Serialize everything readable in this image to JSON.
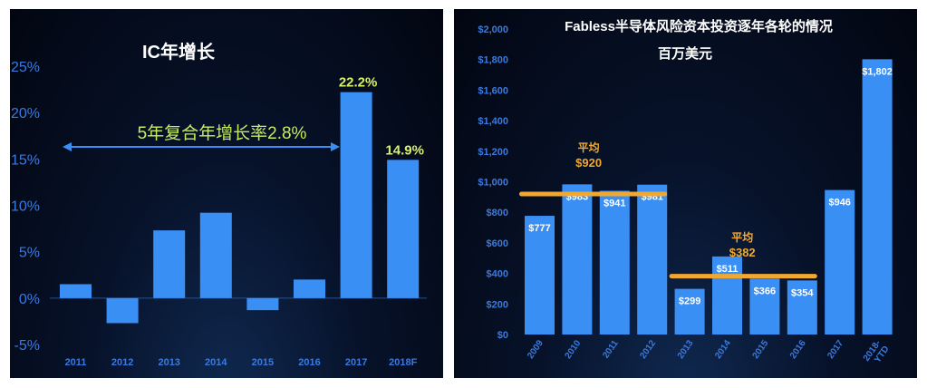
{
  "chart_data": [
    {
      "type": "bar",
      "title": "IC年增长",
      "categories": [
        "2011",
        "2012",
        "2013",
        "2014",
        "2015",
        "2016",
        "2017",
        "2018F"
      ],
      "values": [
        1.5,
        -2.7,
        7.3,
        9.2,
        -1.3,
        2.0,
        22.2,
        14.9
      ],
      "data_labels": [
        "",
        "",
        "",
        "",
        "",
        "",
        "22.2%",
        "14.9%"
      ],
      "ylim": [
        -5,
        25
      ],
      "yticks": [
        25,
        20,
        15,
        10,
        5,
        0,
        -5
      ],
      "ytick_labels": [
        "25%",
        "20%",
        "15%",
        "10%",
        "5%",
        "0%",
        "-5%"
      ],
      "xlabel": "",
      "ylabel": "",
      "grid": false,
      "annotation": "5年复合年增长率2.8%",
      "colors": {
        "bar": "#3a8ff5",
        "title": "#ffffff",
        "axis_text": "#3a7ae0",
        "data_label": "#d8f06a",
        "annotation": "#c8ec5e",
        "arrow": "#3a8ff5"
      }
    },
    {
      "type": "bar",
      "title": "Fabless半导体风险资本投资逐年各轮的情况",
      "subtitle": "百万美元",
      "categories": [
        "2009",
        "2010",
        "2011",
        "2012",
        "2013",
        "2014",
        "2015",
        "2016",
        "2017",
        "2018-\nYTD"
      ],
      "values": [
        777,
        983,
        941,
        981,
        299,
        511,
        366,
        354,
        946,
        1802
      ],
      "data_labels": [
        "$777",
        "$983",
        "$941",
        "$981",
        "$299",
        "$511",
        "$366",
        "$354",
        "$946",
        "$1,802"
      ],
      "ylim": [
        0,
        2000
      ],
      "yticks": [
        0,
        200,
        400,
        600,
        800,
        1000,
        1200,
        1400,
        1600,
        1800,
        2000
      ],
      "ytick_labels": [
        "$0",
        "$200",
        "$400",
        "$600",
        "$800",
        "$1,000",
        "$1,200",
        "$1,400",
        "$1,600",
        "$1,800",
        "$2,000"
      ],
      "xlabel": "",
      "ylabel": "",
      "grid": false,
      "averages": [
        {
          "label": "平均",
          "value_label": "$920",
          "value": 920,
          "from": "2009",
          "to": "2012"
        },
        {
          "label": "平均",
          "value_label": "$382",
          "value": 382,
          "from": "2013",
          "to": "2016"
        }
      ],
      "colors": {
        "bar": "#3a8ff5",
        "title": "#ffffff",
        "axis_text": "#3a7ae0",
        "data_label": "#ffffff",
        "average_line": "#f0a830",
        "average_text": "#f0a830"
      }
    }
  ]
}
